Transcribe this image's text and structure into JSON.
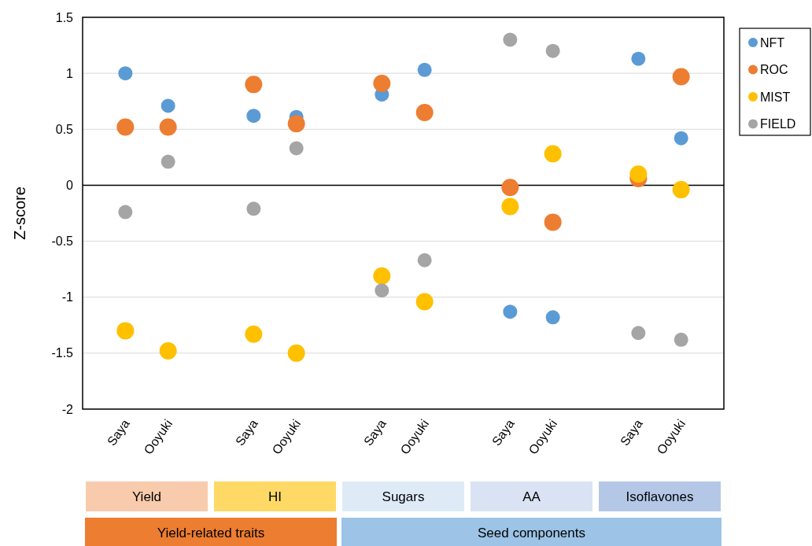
{
  "chart_data": {
    "type": "scatter",
    "ylabel": "Z-score",
    "categories": [
      "Saya",
      "Ooyuki",
      null,
      "Saya",
      "Ooyuki",
      null,
      "Saya",
      "Ooyuki",
      null,
      "Saya",
      "Ooyuki",
      null,
      "Saya",
      "Ooyuki"
    ],
    "series": [
      {
        "name": "NFT",
        "color": "#5b9bd5",
        "values": [
          1.0,
          0.71,
          null,
          0.62,
          0.61,
          null,
          0.81,
          1.03,
          null,
          -1.13,
          -1.18,
          null,
          1.13,
          0.42
        ]
      },
      {
        "name": "ROC",
        "color": "#ed7d31",
        "values": [
          0.52,
          0.52,
          null,
          0.9,
          0.55,
          null,
          0.91,
          0.65,
          null,
          -0.02,
          -0.33,
          null,
          0.06,
          0.97
        ]
      },
      {
        "name": "MIST",
        "color": "#ffc000",
        "values": [
          -1.3,
          -1.48,
          null,
          -1.33,
          -1.5,
          null,
          -0.81,
          -1.04,
          null,
          -0.19,
          0.28,
          null,
          0.1,
          -0.04
        ]
      },
      {
        "name": "FIELD",
        "color": "#a5a5a5",
        "values": [
          -0.24,
          0.21,
          null,
          -0.21,
          0.33,
          null,
          -0.94,
          -0.67,
          null,
          1.3,
          1.2,
          null,
          -1.32,
          -1.38
        ]
      }
    ],
    "ylim": [
      -2,
      1.5
    ],
    "yticks": [
      -2,
      -1.5,
      -1,
      -0.5,
      0,
      0.5,
      1,
      1.5
    ],
    "grid": "y",
    "legend": "right",
    "marker": "circle",
    "annotations": [
      "Yield",
      "HI",
      "Sugars",
      "AA",
      "Isoflavones",
      "Yield-related traits",
      "Seed components"
    ]
  }
}
